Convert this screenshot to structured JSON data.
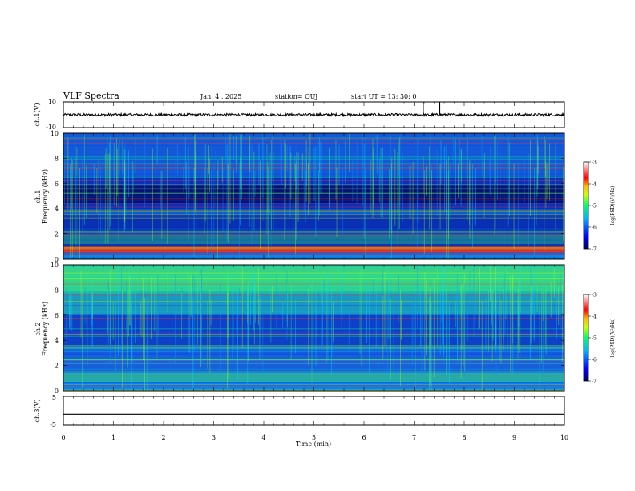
{
  "header": {
    "title": "VLF Spectra",
    "date": "Jan. 4 , 2025",
    "station": "station= OUJ",
    "start": "start  UT =   13: 30: 0"
  },
  "colorbar": {
    "label": "log(PSD)(V²/Hz)",
    "ticks": [
      "-3",
      "-4",
      "-5",
      "-6",
      "-7"
    ],
    "range": [
      -7,
      -3
    ],
    "colors": [
      "#00007a",
      "#0000ff",
      "#00b4ff",
      "#00ff6a",
      "#c8ff00",
      "#ffbf00",
      "#ff0000",
      "#ffffff"
    ]
  },
  "chart_data": [
    {
      "type": "line",
      "panel": "ch1-waveform",
      "ylabel": "ch.1(V)",
      "ylim": [
        -10,
        10
      ],
      "yticks": [
        "10",
        "-10"
      ],
      "xlim": [
        0,
        10
      ],
      "series": [
        {
          "values_level": 0,
          "amplitude_approx": 1,
          "spikes_at_min": [
            7.18,
            7.51
          ]
        }
      ]
    },
    {
      "type": "heatmap",
      "panel": "ch1-spectrogram",
      "ylabel": "ch.1\nFrequency (kHz)",
      "ylim": [
        0,
        10
      ],
      "yticks": [
        "0",
        "2",
        "4",
        "6",
        "8",
        "10"
      ],
      "xlim": [
        0,
        10
      ],
      "zlim": [
        -7,
        -3
      ]
    },
    {
      "type": "heatmap",
      "panel": "ch2-spectrogram",
      "ylabel": "ch.2\nFrequency (kHz)",
      "ylim": [
        0,
        10
      ],
      "yticks": [
        "0",
        "2",
        "4",
        "6",
        "8",
        "10"
      ],
      "xlim": [
        0,
        10
      ],
      "zlim": [
        -7,
        -3
      ]
    },
    {
      "type": "line",
      "panel": "ch3-waveform",
      "ylabel": "ch.3(V)",
      "ylim": [
        -5,
        5
      ],
      "yticks": [
        "5",
        "-5"
      ],
      "xlim": [
        0,
        10
      ],
      "series": [
        {
          "constant_value": -1.2
        }
      ]
    }
  ],
  "xaxis": {
    "label": "Time (min)",
    "ticks": [
      "0",
      "1",
      "2",
      "3",
      "4",
      "5",
      "6",
      "7",
      "8",
      "9",
      "10"
    ]
  }
}
